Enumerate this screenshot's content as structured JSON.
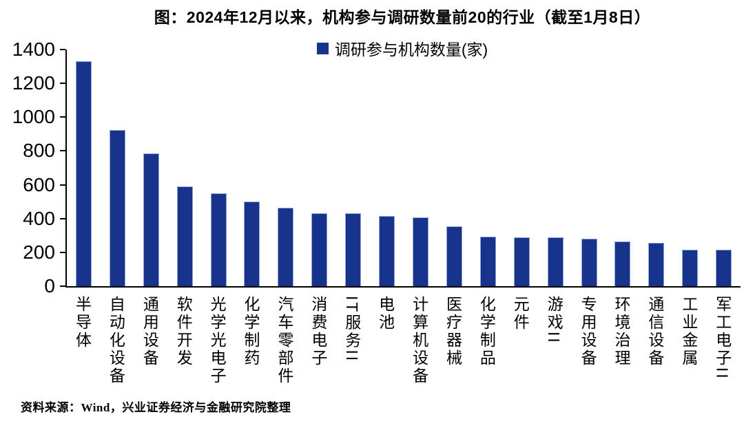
{
  "chart_data": {
    "type": "bar",
    "title": "图：2024年12月以来，机构参与调研数量前20的行业（截至1月8日）",
    "legend": "调研参与机构数量(家)",
    "categories": [
      "半导体",
      "自动化设备",
      "通用设备",
      "软件开发",
      "光学光电子",
      "化学制药",
      "汽车零部件",
      "消费电子",
      "IT服务II",
      "电池",
      "计算机设备",
      "医疗器械",
      "化学制品",
      "元件",
      "游戏II",
      "专用设备",
      "环境治理",
      "通信设备",
      "工业金属",
      "军工电子II"
    ],
    "values": [
      1330,
      925,
      785,
      590,
      550,
      500,
      465,
      430,
      430,
      415,
      405,
      355,
      295,
      290,
      290,
      280,
      265,
      255,
      215,
      215
    ],
    "xlabel": "",
    "ylabel": "",
    "ylim": [
      0,
      1400
    ],
    "yticks": [
      0,
      200,
      400,
      600,
      800,
      1000,
      1200,
      1400
    ],
    "bar_color": "#17338C",
    "bar_edge_color": "#8FA6D9",
    "axis_color": "#000000",
    "legend_position": "top-center",
    "grid": false
  },
  "source_note": "资料来源：Wind，兴业证券经济与金融研究院整理"
}
